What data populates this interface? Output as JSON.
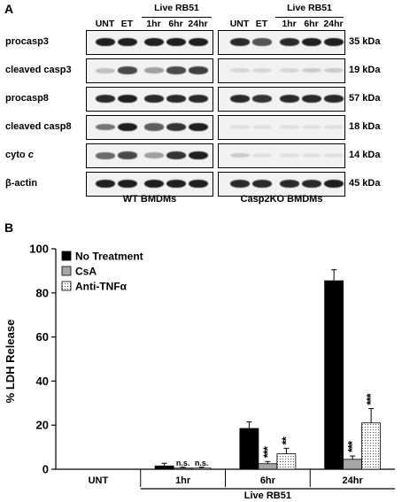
{
  "figure": {
    "panel_a_letter": "A",
    "panel_b_letter": "B"
  },
  "blot": {
    "lanes": [
      "UNT",
      "ET",
      "1hr",
      "6hr",
      "24hr"
    ],
    "condition_label": "Live RB51",
    "rows": [
      {
        "label": "procasp3",
        "kda": "35 kDa",
        "wt": [
          0.95,
          0.95,
          0.95,
          0.95,
          0.95
        ],
        "ko": [
          0.9,
          0.7,
          0.9,
          0.95,
          0.95
        ]
      },
      {
        "label": "cleaved casp3",
        "kda": "19 kDa",
        "wt": [
          0.2,
          0.75,
          0.35,
          0.75,
          0.8
        ],
        "ko": [
          0.1,
          0.1,
          0.1,
          0.15,
          0.15
        ]
      },
      {
        "label": "procasp8",
        "kda": "57 kDa",
        "wt": [
          0.9,
          0.95,
          0.9,
          0.9,
          0.9
        ],
        "ko": [
          0.9,
          0.85,
          0.9,
          0.9,
          0.9
        ]
      },
      {
        "label": "cleaved casp8",
        "kda": "18 kDa",
        "wt": [
          0.55,
          0.95,
          0.65,
          0.85,
          0.95
        ],
        "ko": [
          0.05,
          0.05,
          0.05,
          0.05,
          0.05
        ]
      },
      {
        "label": "cyto c",
        "kda": "14 kDa",
        "label_main": "cyto ",
        "label_italic": "c",
        "wt": [
          0.6,
          0.75,
          0.35,
          0.85,
          0.95
        ],
        "ko": [
          0.15,
          0.05,
          0.05,
          0.05,
          0.05
        ]
      },
      {
        "label": "β-actin",
        "kda": "45 kDa",
        "wt": [
          0.95,
          0.95,
          0.95,
          0.95,
          0.95
        ],
        "ko": [
          0.9,
          0.9,
          0.9,
          0.9,
          0.95
        ]
      }
    ],
    "group_labels": {
      "wt": "WT BMDMs",
      "ko": "Casp2KO BMDMs"
    }
  },
  "chart_data": {
    "type": "bar",
    "ylabel": "% LDH Release",
    "ylim": [
      0,
      100
    ],
    "yticks": [
      0,
      20,
      40,
      60,
      80,
      100
    ],
    "categories": [
      "UNT",
      "1hr",
      "6hr",
      "24hr"
    ],
    "group_label": "Live RB51",
    "legend_position": "top-left",
    "series": [
      {
        "name": "No Treatment",
        "color": "#000000",
        "pattern": "solid",
        "values": [
          0,
          1.5,
          18.5,
          85.5
        ],
        "errors": [
          0,
          1.2,
          3,
          5
        ]
      },
      {
        "name": "CsA",
        "color": "#a6a6a6",
        "pattern": "solid",
        "values": [
          0,
          0.5,
          2.5,
          4.5
        ],
        "errors": [
          0,
          0.4,
          1,
          1.5
        ]
      },
      {
        "name": "Anti-TNFα",
        "color": "#ffffff",
        "pattern": "dotted",
        "values": [
          0,
          0.5,
          7,
          21
        ],
        "errors": [
          0,
          0.4,
          2.5,
          6.5
        ]
      }
    ],
    "annotations": [
      {
        "category": "1hr",
        "series": "CsA",
        "text": "n.s."
      },
      {
        "category": "1hr",
        "series": "Anti-TNFα",
        "text": "n.s."
      },
      {
        "category": "6hr",
        "series": "CsA",
        "text": "***"
      },
      {
        "category": "6hr",
        "series": "Anti-TNFα",
        "text": "**"
      },
      {
        "category": "24hr",
        "series": "CsA",
        "text": "***"
      },
      {
        "category": "24hr",
        "series": "Anti-TNFα",
        "text": "***"
      }
    ]
  }
}
